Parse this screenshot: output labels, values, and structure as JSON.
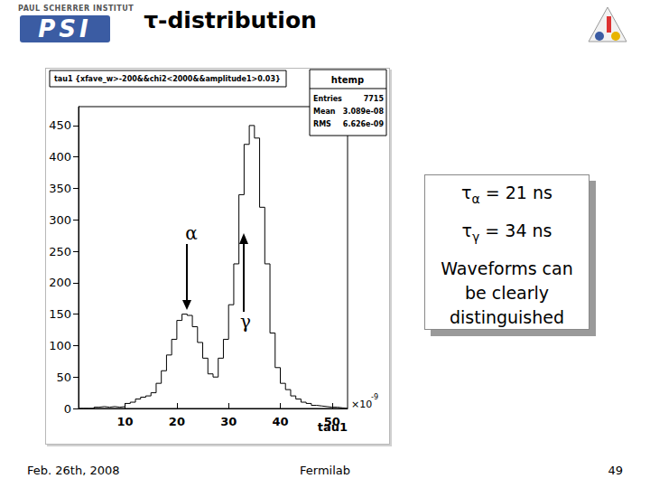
{
  "slide": {
    "logo": {
      "institute": "PAUL SCHERRER INSTITUT",
      "acronym": "PSI"
    },
    "title": "τ-distribution",
    "box": {
      "lines": [
        {
          "symbol": "τ",
          "sub": "α",
          "text": " = 21 ns"
        },
        {
          "symbol": "τ",
          "sub": "γ",
          "text": " = 34 ns"
        }
      ],
      "note": [
        "Waveforms can",
        "be clearly",
        "distinguished"
      ]
    },
    "footer": {
      "date": "Feb. 26th, 2008",
      "venue": "Fermilab",
      "page": "49"
    }
  },
  "chart_data": {
    "type": "histogram",
    "title": "tau1 {xfave_w>-200&&chi2<2000&&amplitude1>0.03}",
    "x_label": "tau1",
    "x_multiplier": {
      "base": "×10",
      "exponent": "-9"
    },
    "bins": [
      1,
      2,
      3,
      4,
      5,
      6,
      7,
      8,
      9,
      10,
      11,
      12,
      13,
      14,
      15,
      16,
      17,
      18,
      19,
      20,
      21,
      22,
      23,
      24,
      25,
      26,
      27,
      28,
      29,
      30,
      31,
      32,
      33,
      34,
      35,
      36,
      37,
      38,
      39,
      40,
      41,
      42,
      43,
      44,
      45,
      46,
      47,
      48,
      49,
      50,
      51,
      52,
      53
    ],
    "counts": [
      0,
      0,
      0,
      2,
      3,
      2,
      3,
      2,
      3,
      8,
      10,
      15,
      18,
      20,
      25,
      40,
      60,
      85,
      110,
      140,
      150,
      148,
      130,
      105,
      80,
      55,
      50,
      80,
      110,
      165,
      230,
      340,
      420,
      450,
      430,
      320,
      230,
      120,
      65,
      40,
      30,
      20,
      15,
      10,
      8,
      5,
      4,
      3,
      2,
      2,
      1,
      0
    ],
    "color": "#000000",
    "xlim": [
      1,
      53
    ],
    "xticks": [
      10,
      20,
      30,
      40,
      50
    ],
    "ylim": [
      0,
      480
    ],
    "yticks": [
      0,
      50,
      100,
      150,
      200,
      250,
      300,
      350,
      400,
      450
    ],
    "grid": false,
    "stats": {
      "name": "htemp",
      "rows": [
        [
          "Entries",
          "7715"
        ],
        [
          "Mean",
          "3.089e-08"
        ],
        [
          "RMS",
          "6.626e-09"
        ]
      ]
    },
    "annotations": [
      "α",
      "γ"
    ]
  }
}
